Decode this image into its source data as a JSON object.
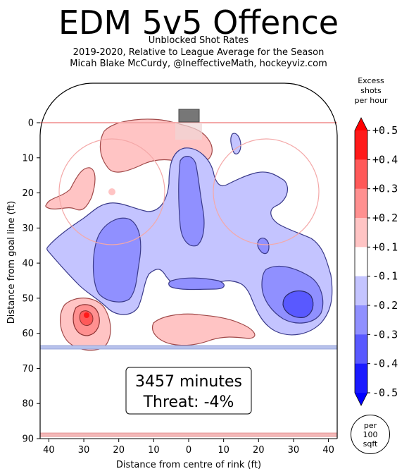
{
  "title": "EDM 5v5 Offence",
  "subtitles": [
    "Unblocked Shot Rates",
    "2019-2020, Relative to League Average for the Season",
    "Micah Blake McCurdy, @IneffectiveMath, hockeyviz.com"
  ],
  "annotation": {
    "line1": "3457 minutes",
    "line2": "Threat: -4%"
  },
  "colorbar": {
    "title_lines": [
      "Excess",
      "shots",
      "per hour"
    ],
    "tick_labels": [
      "+0.5",
      "+0.4",
      "+0.3",
      "+0.2",
      "+0.1",
      "-0.1",
      "-0.2",
      "-0.3",
      "-0.4",
      "-0.5"
    ],
    "colors": [
      "#ff1a1a",
      "#ff5959",
      "#ff9090",
      "#ffc4c4",
      "#ffffff",
      "#c4c4ff",
      "#9090ff",
      "#5959ff",
      "#1a1aff"
    ]
  },
  "per_unit": [
    "per",
    "100",
    "sqft"
  ],
  "chart_data": {
    "type": "heatmap",
    "title": "EDM 5v5 Offence",
    "xlabel": "Distance from centre of rink (ft)",
    "ylabel": "Distance from goal line (ft)",
    "xlim": [
      -42.5,
      42.5
    ],
    "ylim": [
      90,
      -11
    ],
    "x_ticks": [
      "40",
      "30",
      "20",
      "10",
      "0",
      "10",
      "20",
      "30",
      "40"
    ],
    "y_ticks": [
      "0",
      "10",
      "20",
      "30",
      "40",
      "50",
      "60",
      "70",
      "80",
      "90"
    ],
    "grid": false,
    "colorbar_range": [
      -0.5,
      0.5
    ],
    "regions": [
      {
        "sign": "positive",
        "level": 0.15,
        "center": [
          -17,
          6
        ]
      },
      {
        "sign": "positive",
        "level": 0.15,
        "center": [
          -32,
          22
        ]
      },
      {
        "sign": "positive",
        "level": 0.15,
        "center": [
          -29,
          56
        ]
      },
      {
        "sign": "positive",
        "level": 0.45,
        "center": [
          -29,
          55
        ]
      },
      {
        "sign": "positive",
        "level": 0.15,
        "center": [
          11,
          61
        ]
      },
      {
        "sign": "negative",
        "level": -0.15,
        "center": [
          0,
          40
        ]
      },
      {
        "sign": "negative",
        "level": -0.25,
        "center": [
          -22,
          40
        ]
      },
      {
        "sign": "negative",
        "level": -0.25,
        "center": [
          0,
          20
        ]
      },
      {
        "sign": "negative",
        "level": -0.25,
        "center": [
          31,
          50
        ]
      },
      {
        "sign": "negative",
        "level": -0.35,
        "center": [
          31,
          52
        ]
      }
    ]
  }
}
